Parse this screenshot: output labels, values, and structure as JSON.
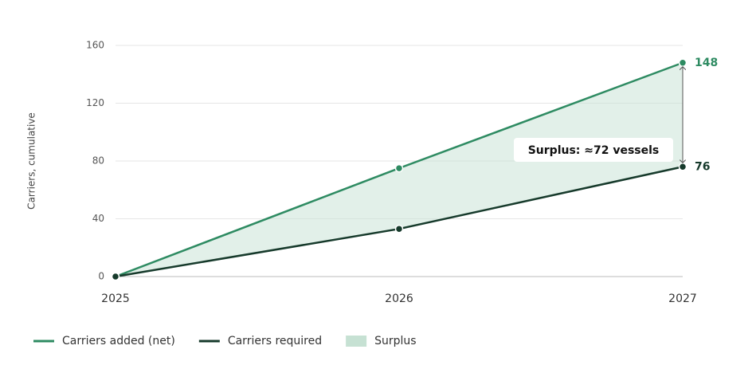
{
  "chart_data": {
    "type": "line",
    "y_label": "Carriers, cumulative",
    "categories": [
      "2025",
      "2026",
      "2027"
    ],
    "series": [
      {
        "name": "Carriers added (net)",
        "color": "#2e8b62",
        "values": [
          0,
          75,
          148
        ]
      },
      {
        "name": "Carriers required",
        "color": "#163a2b",
        "values": [
          0,
          33,
          76
        ]
      }
    ],
    "surplus": {
      "name": "Surplus",
      "color": "#c6e1d3"
    },
    "annotation": "Surplus: ≈72 vessels",
    "ylim": [
      0,
      160
    ],
    "yticks": [
      0,
      40,
      80,
      120,
      160
    ],
    "grid": true
  }
}
